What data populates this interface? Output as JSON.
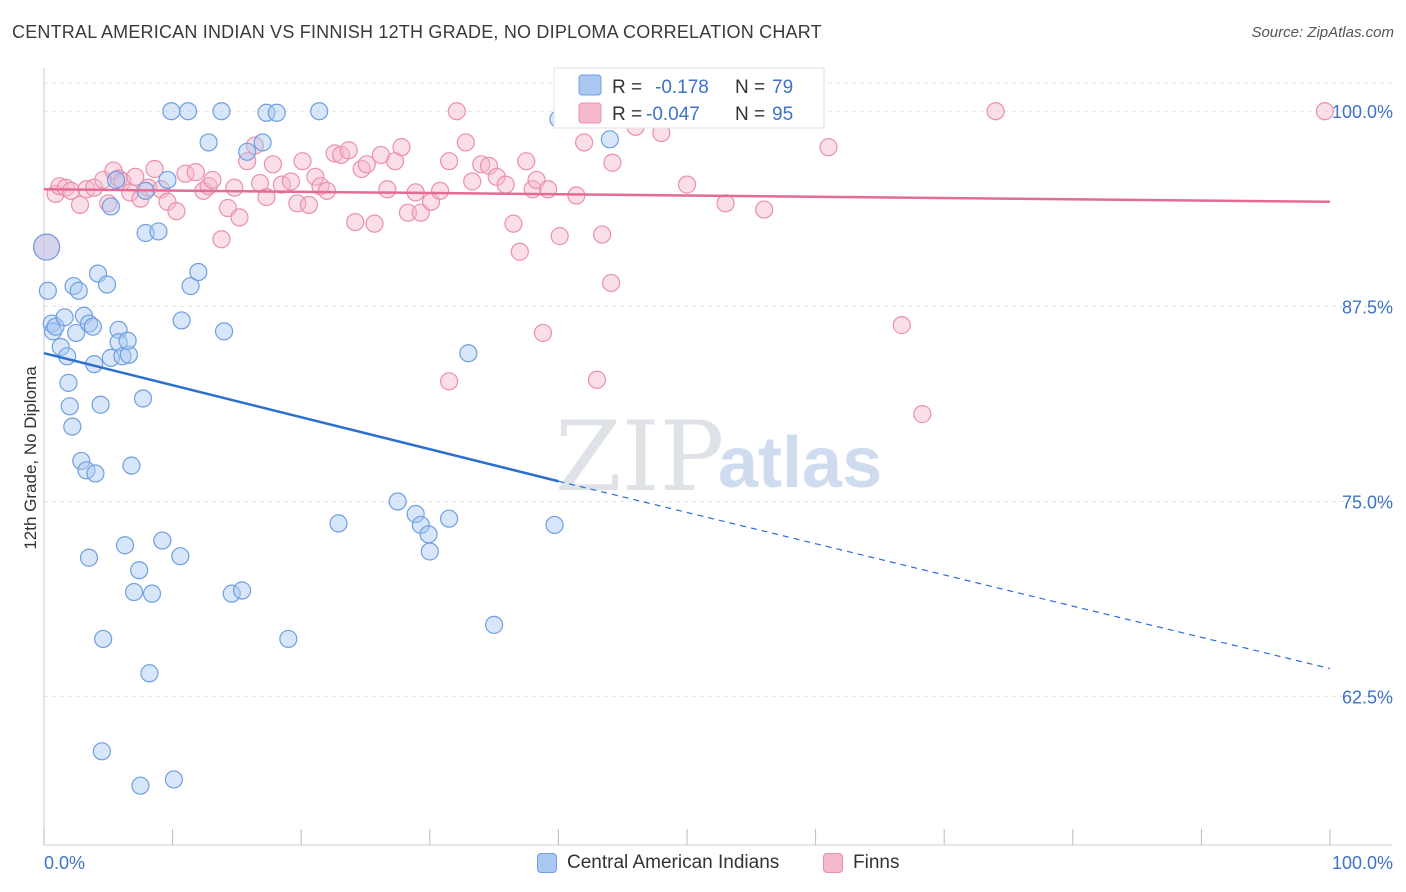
{
  "title": "CENTRAL AMERICAN INDIAN VS FINNISH 12TH GRADE, NO DIPLOMA CORRELATION CHART",
  "source": "Source: ZipAtlas.com",
  "watermark": {
    "zip": "ZIP",
    "atlas": "atlas"
  },
  "colors": {
    "blue_fill": "#a9c8f2",
    "blue_stroke": "#6f9fe0",
    "blue_line": "#2b6fd1",
    "pink_fill": "#f5b8cc",
    "pink_stroke": "#ec8fae",
    "pink_line": "#e36b95",
    "value_text": "#3d72c9",
    "grid": "#e3e3e3"
  },
  "legend_top": [
    {
      "r_label": "R = ",
      "r_value": "-0.178",
      "n_label": "N = ",
      "n_value": "79"
    },
    {
      "r_label": "R = ",
      "r_value": "-0.047",
      "n_label": "N = ",
      "n_value": "95"
    }
  ],
  "legend_bottom": [
    "Central American Indians",
    "Finns"
  ],
  "chart_data": {
    "type": "scatter",
    "title": "CENTRAL AMERICAN INDIAN VS FINNISH 12TH GRADE, NO DIPLOMA CORRELATION CHART",
    "xlabel": "",
    "ylabel": "12th Grade, No Diploma",
    "xlim": [
      0,
      100
    ],
    "ylim": [
      53.0,
      102.0
    ],
    "x_tick_labels": [
      "0.0%",
      "100.0%"
    ],
    "y_ticks": [
      100.0,
      87.5,
      75.0,
      62.5
    ],
    "y_tick_labels": [
      "100.0%",
      "87.5%",
      "75.0%",
      "62.5%"
    ],
    "grid": true,
    "legend_position": "top-center",
    "series": [
      {
        "name": "Central American Indians",
        "color": "#a9c8f2",
        "trend": {
          "x": [
            0,
            40,
            100
          ],
          "y": [
            84.5,
            76.3,
            64.3
          ],
          "solid_until": 40
        },
        "points": [
          [
            0.2,
            91.3
          ],
          [
            0.3,
            88.5
          ],
          [
            0.6,
            86.4
          ],
          [
            0.7,
            85.9
          ],
          [
            0.9,
            86.2
          ],
          [
            1.3,
            84.9
          ],
          [
            1.6,
            86.8
          ],
          [
            1.8,
            84.3
          ],
          [
            1.9,
            82.6
          ],
          [
            2.0,
            81.1
          ],
          [
            2.2,
            79.8
          ],
          [
            2.3,
            88.8
          ],
          [
            2.5,
            85.8
          ],
          [
            2.7,
            88.5
          ],
          [
            2.9,
            77.6
          ],
          [
            3.1,
            86.9
          ],
          [
            3.3,
            77.0
          ],
          [
            3.5,
            86.4
          ],
          [
            3.5,
            71.4
          ],
          [
            3.8,
            86.2
          ],
          [
            3.9,
            83.8
          ],
          [
            4.0,
            76.8
          ],
          [
            4.2,
            89.6
          ],
          [
            4.4,
            81.2
          ],
          [
            4.6,
            66.2
          ],
          [
            4.5,
            59.0
          ],
          [
            4.9,
            88.9
          ],
          [
            5.2,
            84.2
          ],
          [
            5.2,
            93.9
          ],
          [
            5.6,
            95.6
          ],
          [
            5.8,
            86.0
          ],
          [
            5.8,
            85.2
          ],
          [
            6.1,
            84.3
          ],
          [
            6.3,
            72.2
          ],
          [
            6.6,
            84.4
          ],
          [
            6.5,
            85.3
          ],
          [
            6.8,
            77.3
          ],
          [
            7.0,
            69.2
          ],
          [
            7.4,
            70.6
          ],
          [
            7.5,
            56.8
          ],
          [
            7.7,
            81.6
          ],
          [
            7.9,
            94.9
          ],
          [
            7.9,
            92.2
          ],
          [
            8.2,
            64.0
          ],
          [
            8.4,
            69.1
          ],
          [
            8.9,
            92.3
          ],
          [
            9.2,
            72.5
          ],
          [
            9.6,
            95.6
          ],
          [
            9.9,
            100.0
          ],
          [
            10.1,
            57.2
          ],
          [
            10.6,
            71.5
          ],
          [
            10.7,
            86.6
          ],
          [
            11.2,
            100.0
          ],
          [
            11.4,
            88.8
          ],
          [
            12.0,
            89.7
          ],
          [
            12.8,
            98.0
          ],
          [
            13.8,
            100.0
          ],
          [
            14.0,
            85.9
          ],
          [
            14.6,
            69.1
          ],
          [
            15.4,
            69.3
          ],
          [
            15.8,
            97.4
          ],
          [
            17.0,
            98.0
          ],
          [
            17.3,
            99.9
          ],
          [
            18.1,
            99.9
          ],
          [
            19.0,
            66.2
          ],
          [
            21.4,
            100.0
          ],
          [
            22.9,
            73.6
          ],
          [
            27.5,
            75.0
          ],
          [
            28.9,
            74.2
          ],
          [
            29.3,
            73.5
          ],
          [
            29.9,
            72.9
          ],
          [
            30.0,
            71.8
          ],
          [
            31.5,
            73.9
          ],
          [
            33.0,
            84.5
          ],
          [
            35.0,
            67.1
          ],
          [
            39.7,
            73.5
          ],
          [
            40.0,
            99.5
          ],
          [
            43.0,
            99.8
          ],
          [
            44.0,
            98.2
          ]
        ]
      },
      {
        "name": "Finns",
        "color": "#f5b8cc",
        "trend": {
          "x": [
            0,
            100
          ],
          "y": [
            95.0,
            94.2
          ]
        },
        "points": [
          [
            0.2,
            91.3
          ],
          [
            0.9,
            94.7
          ],
          [
            1.2,
            95.2
          ],
          [
            1.7,
            95.1
          ],
          [
            2.1,
            94.9
          ],
          [
            2.8,
            94.0
          ],
          [
            3.3,
            95.0
          ],
          [
            3.9,
            95.1
          ],
          [
            4.6,
            95.6
          ],
          [
            5.0,
            94.1
          ],
          [
            5.4,
            96.2
          ],
          [
            5.8,
            95.7
          ],
          [
            6.1,
            95.5
          ],
          [
            6.7,
            94.8
          ],
          [
            7.1,
            95.8
          ],
          [
            7.5,
            94.4
          ],
          [
            8.1,
            95.1
          ],
          [
            8.6,
            96.3
          ],
          [
            9.1,
            95.0
          ],
          [
            9.6,
            94.2
          ],
          [
            10.3,
            93.6
          ],
          [
            11.0,
            96.0
          ],
          [
            11.8,
            96.1
          ],
          [
            12.4,
            94.9
          ],
          [
            12.8,
            95.2
          ],
          [
            13.1,
            95.6
          ],
          [
            13.8,
            91.8
          ],
          [
            14.3,
            93.8
          ],
          [
            14.8,
            95.1
          ],
          [
            15.2,
            93.2
          ],
          [
            15.8,
            96.8
          ],
          [
            16.4,
            97.8
          ],
          [
            16.8,
            95.4
          ],
          [
            17.3,
            94.5
          ],
          [
            17.8,
            96.6
          ],
          [
            18.5,
            95.3
          ],
          [
            19.2,
            95.5
          ],
          [
            19.7,
            94.1
          ],
          [
            20.1,
            96.8
          ],
          [
            20.6,
            94.0
          ],
          [
            21.1,
            95.8
          ],
          [
            21.5,
            95.2
          ],
          [
            22.0,
            94.9
          ],
          [
            22.6,
            97.3
          ],
          [
            23.1,
            97.2
          ],
          [
            23.7,
            97.5
          ],
          [
            24.2,
            92.9
          ],
          [
            24.7,
            96.3
          ],
          [
            25.1,
            96.6
          ],
          [
            25.7,
            92.8
          ],
          [
            26.2,
            97.2
          ],
          [
            26.7,
            95.0
          ],
          [
            27.3,
            96.8
          ],
          [
            27.8,
            97.7
          ],
          [
            28.3,
            93.5
          ],
          [
            28.9,
            94.8
          ],
          [
            29.3,
            93.5
          ],
          [
            30.1,
            94.2
          ],
          [
            30.8,
            94.9
          ],
          [
            31.5,
            96.8
          ],
          [
            32.1,
            100.0
          ],
          [
            32.8,
            98.0
          ],
          [
            33.3,
            95.5
          ],
          [
            34.0,
            96.6
          ],
          [
            34.6,
            96.5
          ],
          [
            35.2,
            95.8
          ],
          [
            35.9,
            95.3
          ],
          [
            36.5,
            92.8
          ],
          [
            37.0,
            91.0
          ],
          [
            37.5,
            96.8
          ],
          [
            38.0,
            95.0
          ],
          [
            38.3,
            95.6
          ],
          [
            39.2,
            95.0
          ],
          [
            40.1,
            92.0
          ],
          [
            41.4,
            94.6
          ],
          [
            43.4,
            92.1
          ],
          [
            44.1,
            89.0
          ],
          [
            38.8,
            85.8
          ],
          [
            31.5,
            82.7
          ],
          [
            43.0,
            82.8
          ],
          [
            50.0,
            95.3
          ],
          [
            53.0,
            94.1
          ],
          [
            54.0,
            99.7
          ],
          [
            56.0,
            93.7
          ],
          [
            59.0,
            100.0
          ],
          [
            61.0,
            97.7
          ],
          [
            66.7,
            86.3
          ],
          [
            68.3,
            80.6
          ],
          [
            74.0,
            100.0
          ],
          [
            99.6,
            100.0
          ],
          [
            44.2,
            96.7
          ],
          [
            45.0,
            99.6
          ],
          [
            46.0,
            99.0
          ],
          [
            48.0,
            98.6
          ],
          [
            42.0,
            98.0
          ]
        ]
      }
    ]
  }
}
